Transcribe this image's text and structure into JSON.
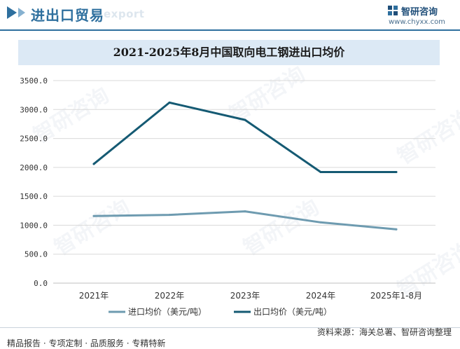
{
  "header": {
    "title": "进出口贸易",
    "ghost_text": "export",
    "brand_name": "智研咨询",
    "brand_url": "www.chyxx.com"
  },
  "watermark_text": "智研咨询",
  "colors": {
    "import": "#6e9bb0",
    "export": "#155a73",
    "accent": "#2e6f9e",
    "title_band": "#dce9f5"
  },
  "chart_data": {
    "type": "line",
    "title": "2021-2025年8月中国取向电工钢进出口均价",
    "categories": [
      "2021年",
      "2022年",
      "2023年",
      "2024年",
      "2025年1-8月"
    ],
    "ylim": [
      0,
      3500
    ],
    "yticks": [
      "0.0",
      "500.0",
      "1000.0",
      "1500.0",
      "2000.0",
      "2500.0",
      "3000.0",
      "3500.0"
    ],
    "ytick_values": [
      0,
      500,
      1000,
      1500,
      2000,
      2500,
      3000,
      3500
    ],
    "grid": true,
    "legend_position": "bottom",
    "series": [
      {
        "name": "进口均价（美元/吨）",
        "values": [
          1160,
          1180,
          1240,
          1050,
          930
        ],
        "color": "#6e9bb0"
      },
      {
        "name": "出口均价（美元/吨）",
        "values": [
          2060,
          3120,
          2820,
          1920,
          1920
        ],
        "color": "#155a73"
      }
    ]
  },
  "footer": {
    "source": "资料来源：海关总署、智研咨询整理",
    "services": "精品报告 · 专项定制 · 品质服务 · 专精特新"
  }
}
